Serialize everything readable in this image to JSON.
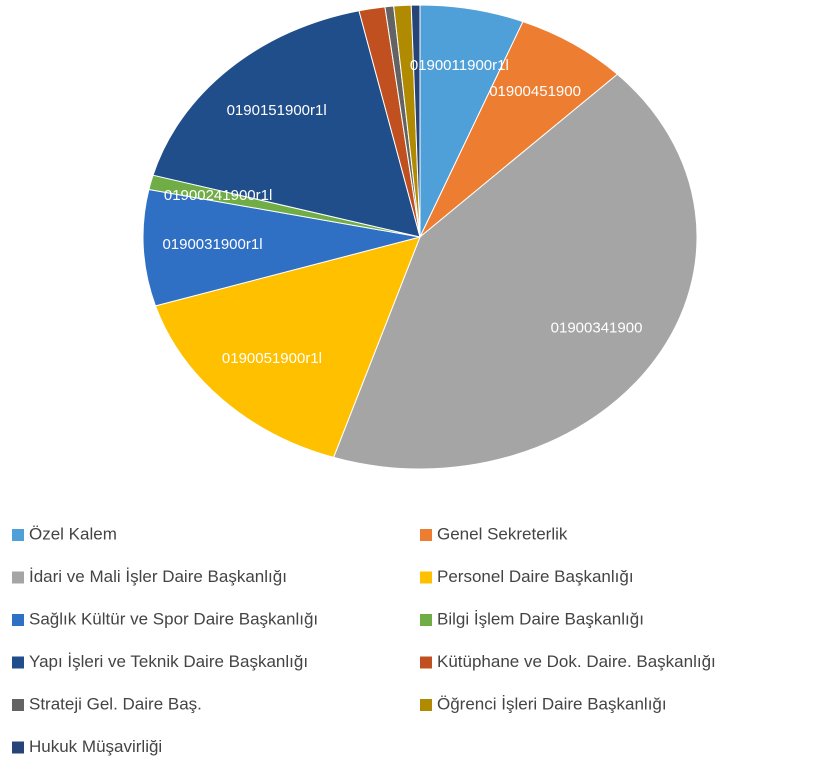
{
  "chart_data": {
    "type": "pie",
    "categories": [
      "Özel Kalem",
      "Genel Sekreterlik",
      "İdari ve Mali İşler Daire Başkanlığı",
      "Personel Daire Başkanlığı",
      "Sağlık Kültür ve Spor Daire Başkanlığı",
      "Bilgi İşlem Daire Başkanlığı",
      "Yapı İşleri ve Teknik Daire Başkanlığı",
      "Kütüphane ve Dok. Daire. Başkanlığı",
      "Strateji Gel. Daire Baş.",
      "Öğrenci İşleri Daire Başkanlığı",
      "Hukuk Müşavirliği"
    ],
    "values": [
      6,
      6.5,
      42,
      15,
      8,
      1,
      17,
      1.5,
      0.5,
      1,
      0.5
    ],
    "colors": [
      "#4f9fd8",
      "#ed7d31",
      "#a5a5a5",
      "#ffc000",
      "#2f6fc4",
      "#70ad47",
      "#1f4e8a",
      "#c0501f",
      "#636363",
      "#b08a00",
      "#264478"
    ],
    "slice_labels": [
      "0190011900r1l",
      "01900451900",
      "01900341900",
      "0190051900r1l",
      "0190031900r1l",
      "01900241900r1l",
      "0190151900r1l",
      null,
      null,
      null,
      null
    ]
  }
}
